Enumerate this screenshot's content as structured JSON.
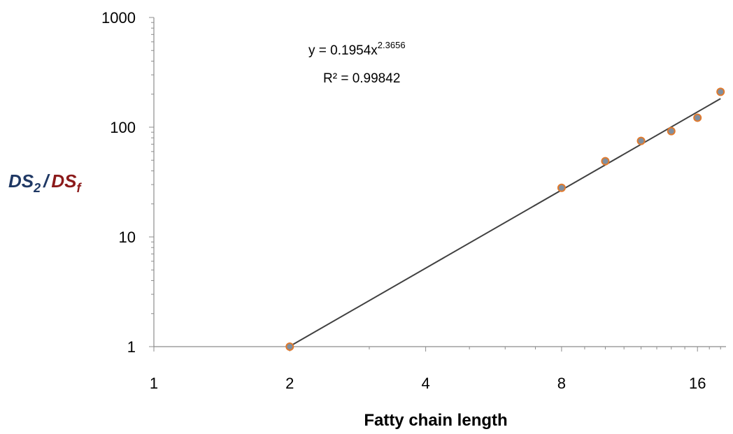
{
  "chart_data": {
    "type": "scatter",
    "x_scale": "log2",
    "y_scale": "log10",
    "xlim": [
      1,
      20
    ],
    "ylim": [
      1,
      1000
    ],
    "x_ticks": [
      "1",
      "2",
      "4",
      "8",
      "16"
    ],
    "y_ticks": [
      "1",
      "10",
      "100",
      "1000"
    ],
    "xlabel": "Fatty chain length",
    "ylabel": {
      "part1": "DS",
      "part1_sub": "2",
      "separator": "/",
      "part2": "DS",
      "part2_sub": "f",
      "part1_color": "#1f3864",
      "part2_color": "#8b1a1a"
    },
    "grid": false,
    "legend": "none",
    "series": [
      {
        "x": [
          2,
          8,
          10,
          12,
          14,
          16,
          18
        ],
        "y": [
          1,
          28,
          49,
          75,
          92,
          122,
          210
        ],
        "marker_fill": "#7f8fa0",
        "marker_stroke": "#e07a2e"
      }
    ],
    "trendline": {
      "type": "power",
      "coef": 0.1954,
      "exponent": 2.3656,
      "x_range": [
        2,
        18
      ],
      "color": "#404040",
      "equation_prefix": "y = 0.1954x",
      "equation_exponent": "2.3656",
      "r_squared": "R² = 0.99842"
    },
    "axis_color": "#8c8c8c"
  }
}
